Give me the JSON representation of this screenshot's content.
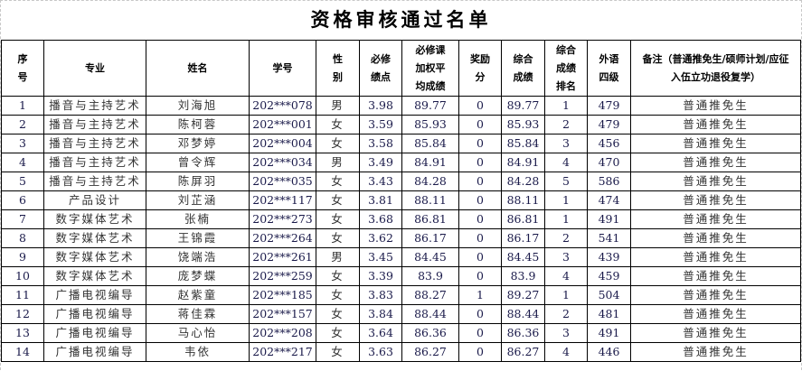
{
  "title": "资格审核通过名单",
  "columns": [
    "序号",
    "专业",
    "姓名",
    "学号",
    "性别",
    "必修绩点",
    "必修课加权平均成绩",
    "奖励分",
    "综合成绩",
    "综合成绩排名",
    "外语四级",
    "备注（普通推免生/硕师计划/应征入伍立功退役复学）"
  ],
  "rows": [
    [
      "1",
      "播音与主持艺术",
      "刘海旭",
      "202***078",
      "男",
      "3.98",
      "89.77",
      "0",
      "89.77",
      "1",
      "479",
      "普通推免生"
    ],
    [
      "2",
      "播音与主持艺术",
      "陈柯蓉",
      "202***001",
      "女",
      "3.59",
      "85.93",
      "0",
      "85.93",
      "2",
      "479",
      "普通推免生"
    ],
    [
      "3",
      "播音与主持艺术",
      "邓梦婷",
      "202***004",
      "女",
      "3.58",
      "85.84",
      "0",
      "85.84",
      "3",
      "456",
      "普通推免生"
    ],
    [
      "4",
      "播音与主持艺术",
      "曾令辉",
      "202***034",
      "男",
      "3.49",
      "84.91",
      "0",
      "84.91",
      "4",
      "470",
      "普通推免生"
    ],
    [
      "5",
      "播音与主持艺术",
      "陈屏羽",
      "202***035",
      "女",
      "3.43",
      "84.28",
      "0",
      "84.28",
      "5",
      "586",
      "普通推免生"
    ],
    [
      "6",
      "产品设计",
      "刘芷涵",
      "202***117",
      "女",
      "3.81",
      "88.11",
      "0",
      "88.11",
      "1",
      "474",
      "普通推免生"
    ],
    [
      "7",
      "数字媒体艺术",
      "张楠",
      "202***273",
      "女",
      "3.68",
      "86.81",
      "0",
      "86.81",
      "1",
      "491",
      "普通推免生"
    ],
    [
      "8",
      "数字媒体艺术",
      "王锦霞",
      "202***264",
      "女",
      "3.62",
      "86.17",
      "0",
      "86.17",
      "2",
      "541",
      "普通推免生"
    ],
    [
      "9",
      "数字媒体艺术",
      "饶端浩",
      "202***261",
      "男",
      "3.45",
      "84.45",
      "0",
      "84.45",
      "3",
      "439",
      "普通推免生"
    ],
    [
      "10",
      "数字媒体艺术",
      "庞梦蝶",
      "202***259",
      "女",
      "3.39",
      "83.9",
      "0",
      "83.9",
      "4",
      "459",
      "普通推免生"
    ],
    [
      "11",
      "广播电视编导",
      "赵紫童",
      "202***185",
      "女",
      "3.83",
      "88.27",
      "1",
      "89.27",
      "1",
      "504",
      "普通推免生"
    ],
    [
      "12",
      "广播电视编导",
      "蒋佳霖",
      "202***157",
      "女",
      "3.84",
      "88.44",
      "0",
      "88.44",
      "2",
      "481",
      "普通推免生"
    ],
    [
      "13",
      "广播电视编导",
      "马心怡",
      "202***208",
      "女",
      "3.64",
      "86.36",
      "0",
      "86.36",
      "3",
      "491",
      "普通推免生"
    ],
    [
      "14",
      "广播电视编导",
      "韦依",
      "202***217",
      "女",
      "3.63",
      "86.27",
      "0",
      "86.27",
      "4",
      "446",
      "普通推免生"
    ]
  ]
}
